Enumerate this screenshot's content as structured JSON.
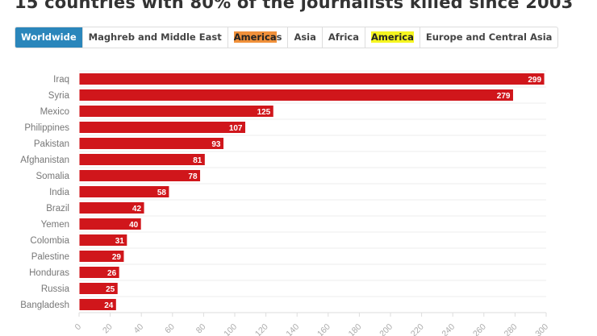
{
  "chart_data": {
    "type": "bar",
    "title": "15 countries with 80% of the journalists killed since 2003",
    "categories": [
      "Iraq",
      "Syria",
      "Mexico",
      "Philippines",
      "Pakistan",
      "Afghanistan",
      "Somalia",
      "India",
      "Brazil",
      "Yemen",
      "Colombia",
      "Palestine",
      "Honduras",
      "Russia",
      "Bangladesh"
    ],
    "values": [
      299,
      279,
      125,
      107,
      93,
      81,
      78,
      58,
      42,
      40,
      31,
      29,
      26,
      25,
      24
    ],
    "xlim": [
      0,
      300
    ],
    "xticks": [
      0,
      20,
      40,
      60,
      80,
      100,
      120,
      140,
      160,
      180,
      200,
      220,
      240,
      260,
      280,
      300
    ],
    "xlabel": "",
    "ylabel": "",
    "bar_color": "#d0161b",
    "grid": true
  },
  "tabs": [
    {
      "label": "Worldwide",
      "active": true
    },
    {
      "label": "Maghreb and Middle East"
    },
    {
      "label": "Americas",
      "highlight": "America",
      "highlight_color": "#f0903a"
    },
    {
      "label": "Asia"
    },
    {
      "label": "Africa"
    },
    {
      "label": "America",
      "highlight": "America",
      "highlight_color": "#f5f520"
    },
    {
      "label": "Europe and Central Asia"
    }
  ]
}
